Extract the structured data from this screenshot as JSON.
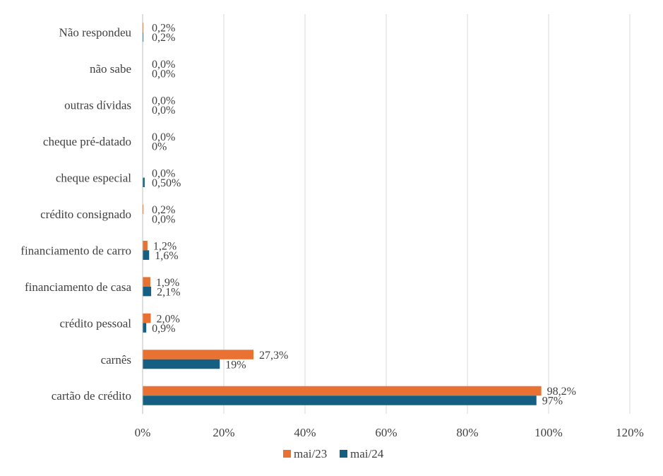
{
  "chart_data": {
    "type": "bar",
    "orientation": "horizontal",
    "categories": [
      "Não respondeu",
      "não sabe",
      "outras dívidas",
      "cheque pré-datado",
      "cheque especial",
      "crédito consignado",
      "financiamento de carro",
      "financiamento de casa",
      "crédito pessoal",
      "carnês",
      "cartão de crédito"
    ],
    "series": [
      {
        "name": "mai/23",
        "color": "#E97132",
        "values": [
          0.2,
          0.0,
          0.0,
          0.0,
          0.0,
          0.2,
          1.2,
          1.9,
          2.0,
          27.3,
          98.2
        ],
        "labels": [
          "0,2%",
          "0,0%",
          "0,0%",
          "0,0%",
          "0,0%",
          "0,2%",
          "1,2%",
          "1,9%",
          "2,0%",
          "27,3%",
          "98,2%"
        ]
      },
      {
        "name": "mai/24",
        "color": "#156082",
        "values": [
          0.2,
          0.0,
          0.0,
          0.0,
          0.5,
          0.0,
          1.6,
          2.1,
          0.9,
          19,
          97
        ],
        "labels": [
          "0,2%",
          "0,0%",
          "0,0%",
          "0%",
          "0,50%",
          "0,0%",
          "1,6%",
          "2,1%",
          "0,9%",
          "19%",
          "97%"
        ]
      }
    ],
    "xlim": [
      0,
      120
    ],
    "xticks": [
      "0%",
      "20%",
      "40%",
      "60%",
      "80%",
      "100%",
      "120%"
    ],
    "grid": true,
    "legend_position": "bottom",
    "title": "",
    "xlabel": "",
    "ylabel": ""
  }
}
